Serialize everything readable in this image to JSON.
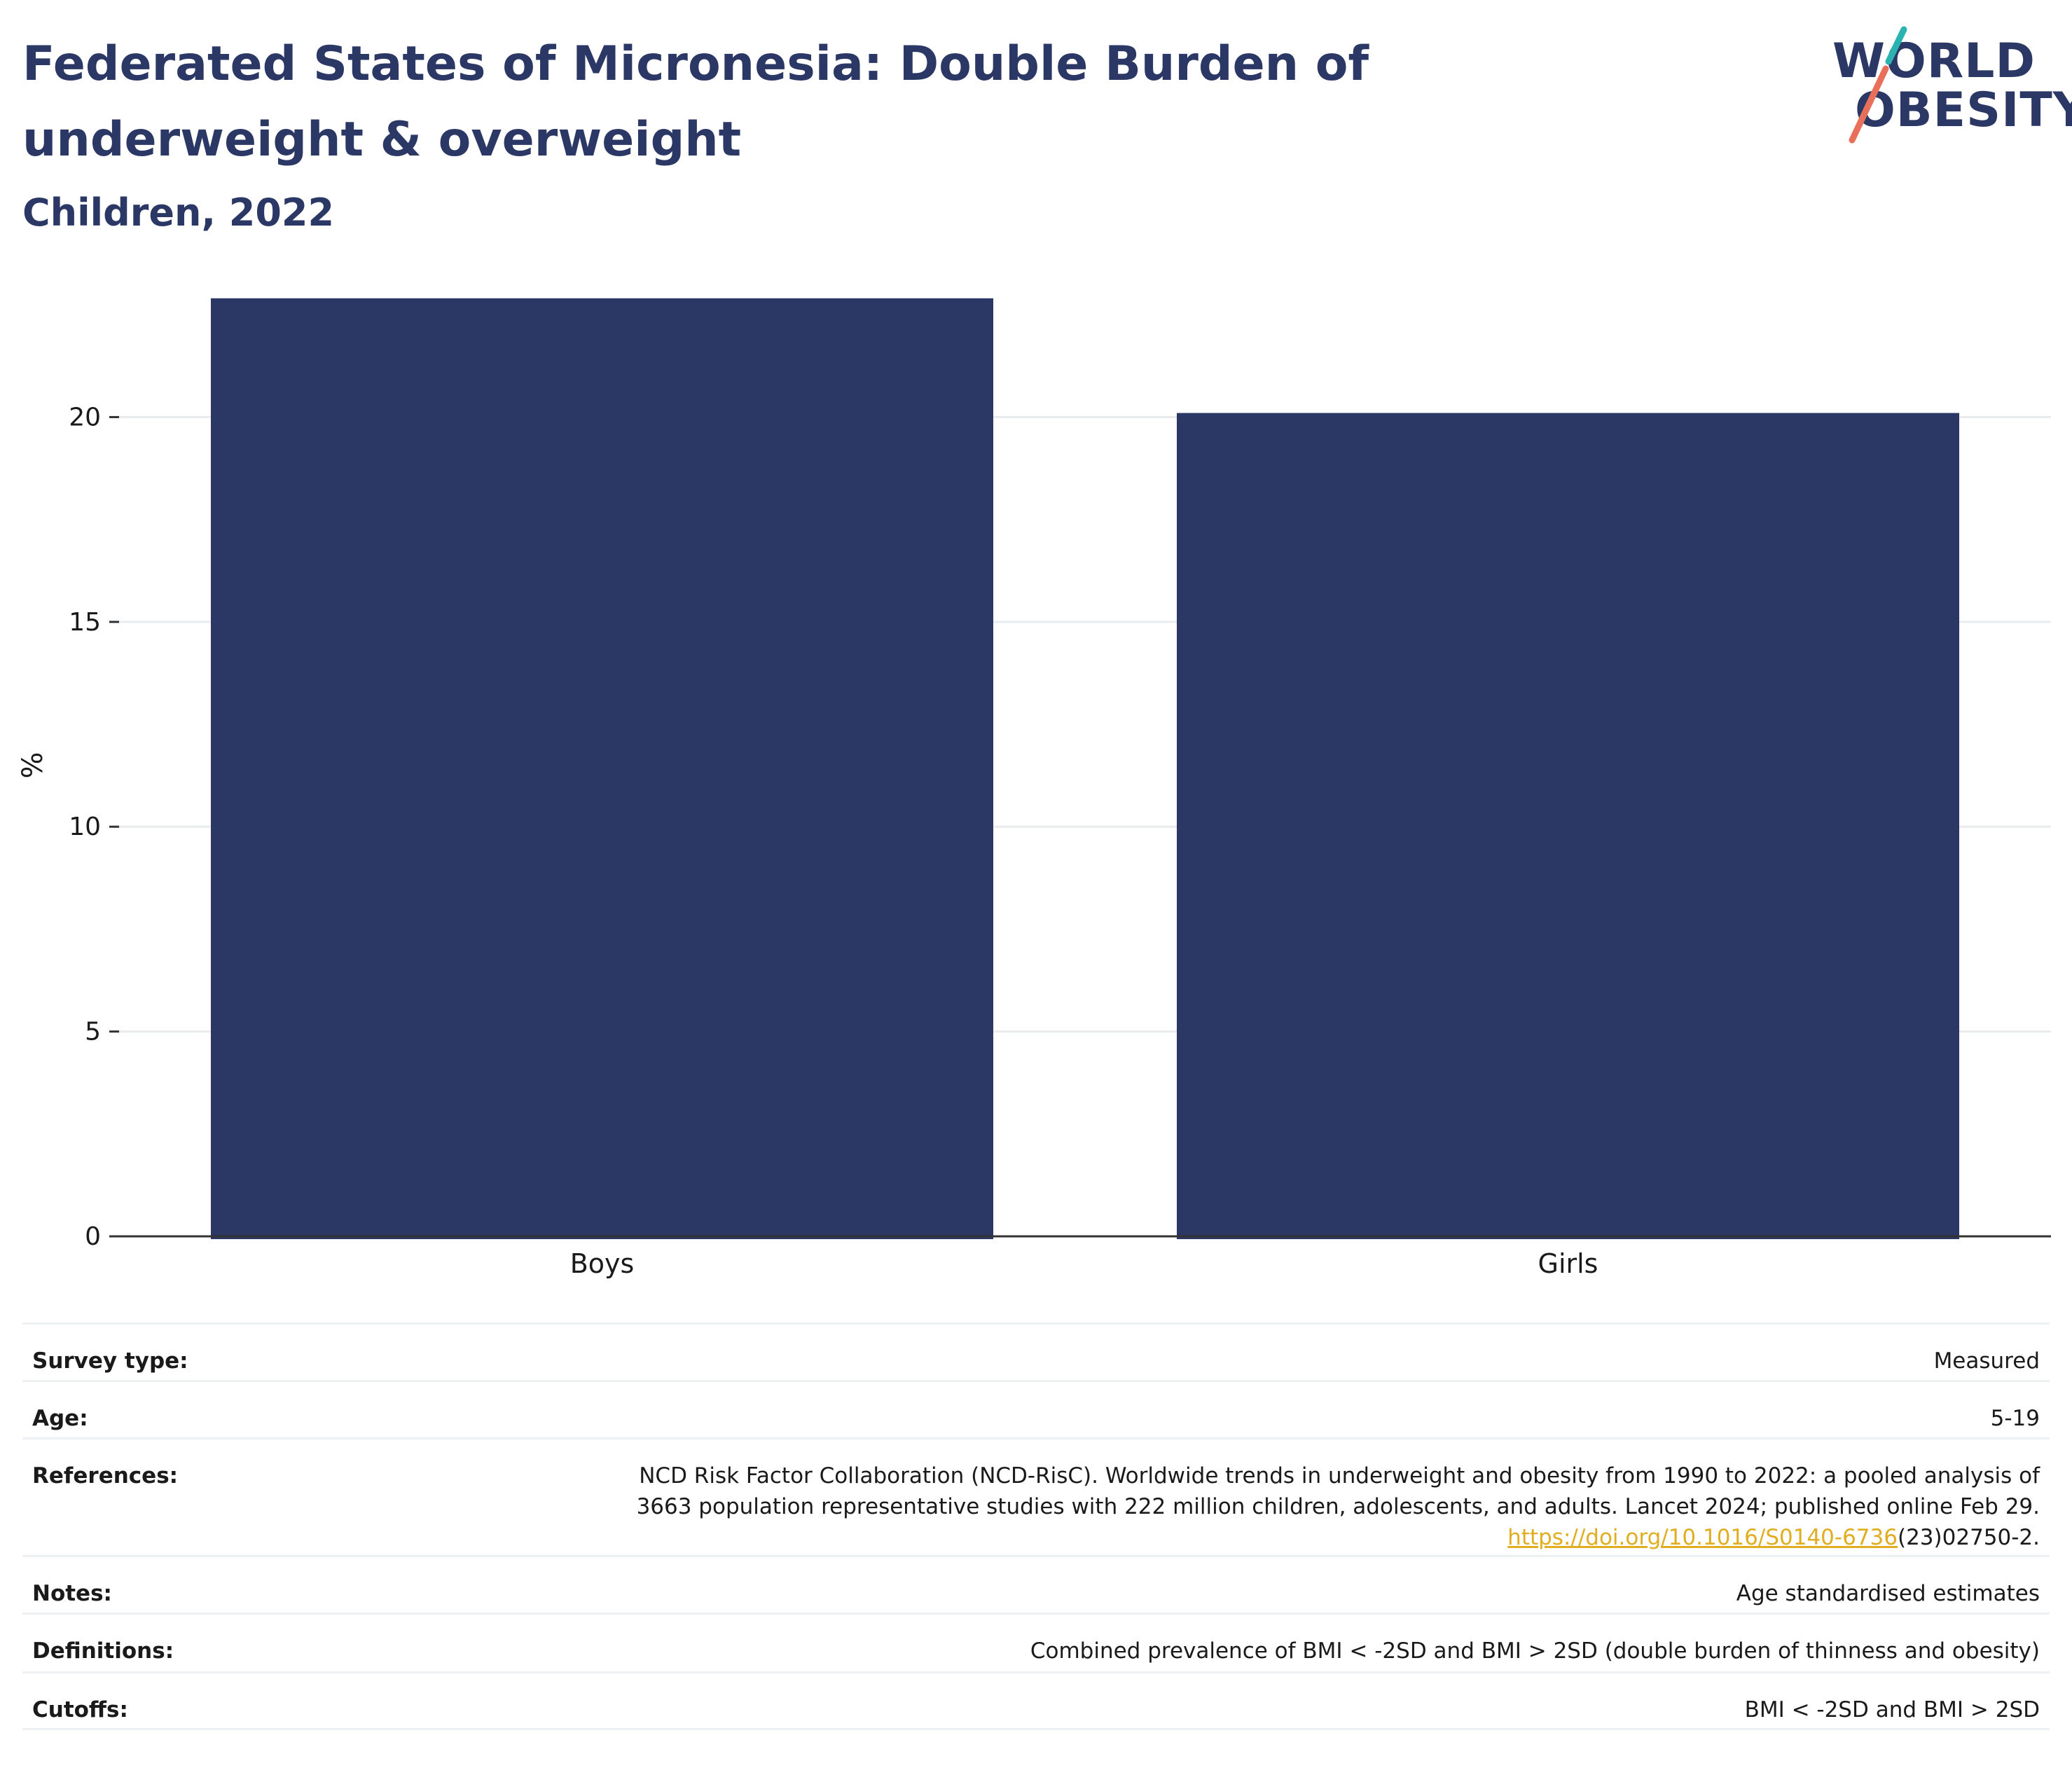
{
  "header": {
    "title": "Federated States of Micronesia: Double Burden of underweight & overweight",
    "subtitle": "Children, 2022"
  },
  "logo": {
    "line1": "WORLD",
    "line2": "OBESITY",
    "colors": {
      "text": "#2b3764",
      "teal": "#2bb3b1",
      "coral": "#e8705a"
    }
  },
  "chart_data": {
    "type": "bar",
    "categories": [
      "Boys",
      "Girls"
    ],
    "values": [
      22.9,
      20.1
    ],
    "ylabel": "%",
    "xlabel": "",
    "ylim": [
      0,
      23
    ],
    "yticks": [
      0,
      5,
      10,
      15,
      20
    ],
    "grid": true,
    "bar_color": "#2b3764"
  },
  "meta": {
    "survey_type": {
      "label": "Survey type:",
      "value": "Measured"
    },
    "age": {
      "label": "Age:",
      "value": "5-19"
    },
    "references": {
      "label": "References:",
      "line1": "NCD Risk Factor Collaboration (NCD-RisC). Worldwide trends in underweight and obesity from 1990 to 2022: a pooled analysis of",
      "line2": "3663 population representative studies with 222 million children, adolescents, and adults. Lancet 2024; published online Feb 29.",
      "link": "https://doi.org/10.1016/S0140-6736",
      "link_suffix": "(23)02750-2."
    },
    "notes": {
      "label": "Notes:",
      "value": "Age standardised estimates"
    },
    "definitions": {
      "label": "Definitions:",
      "value": "Combined prevalence of BMI < -2SD and BMI > 2SD (double burden of thinness and obesity)"
    },
    "cutoffs": {
      "label": "Cutoffs:",
      "value": "BMI < -2SD and BMI > 2SD"
    }
  }
}
